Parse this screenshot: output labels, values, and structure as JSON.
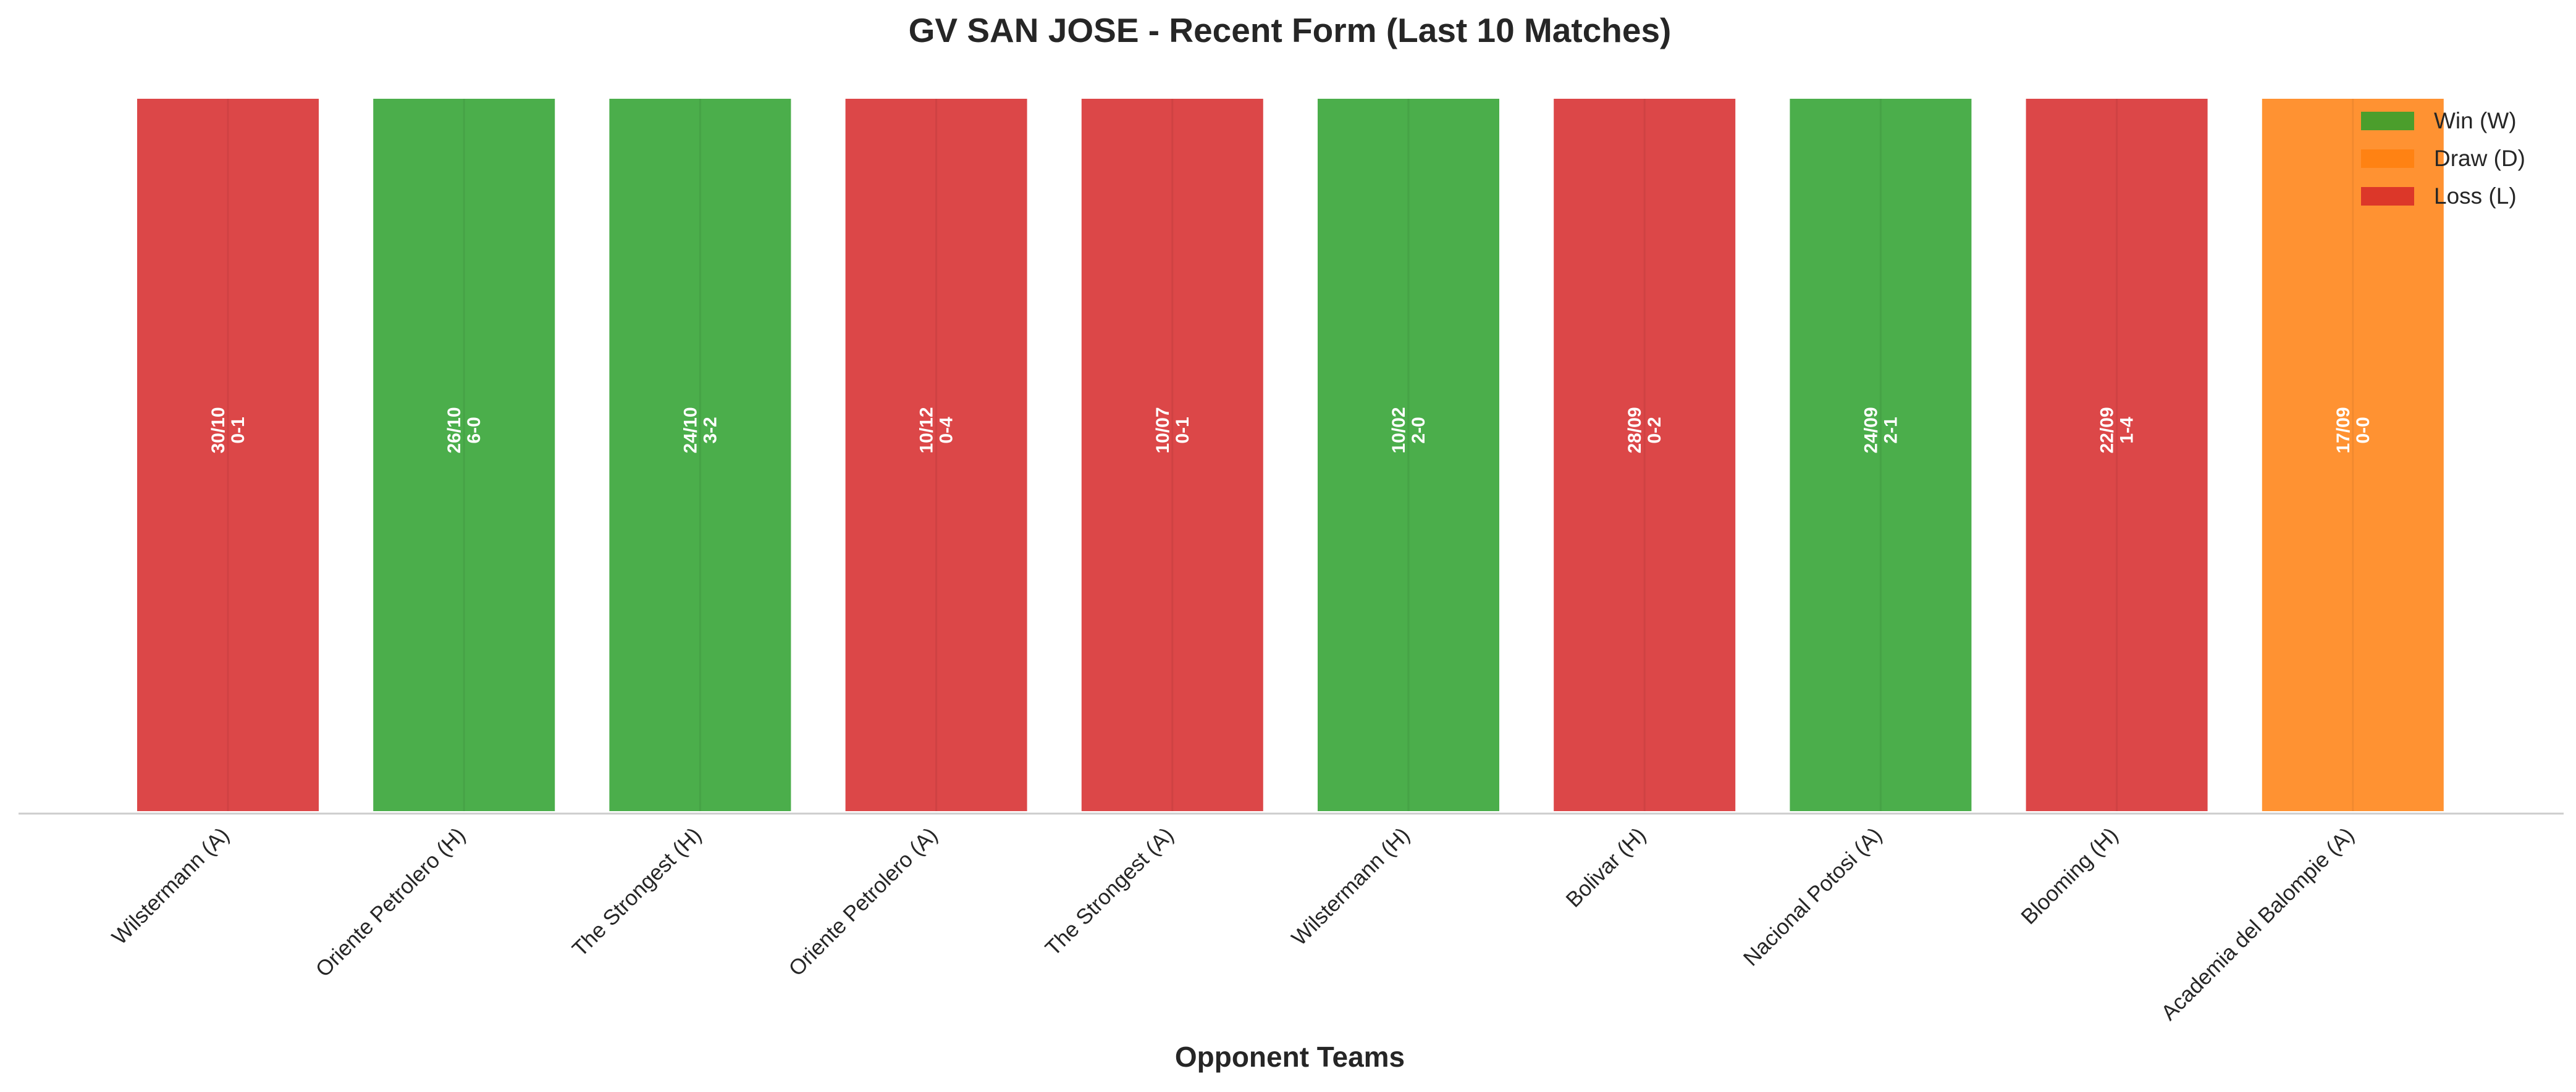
{
  "chart_data": {
    "type": "bar",
    "title": "GV SAN JOSE - Recent Form (Last 10 Matches)",
    "xlabel": "Opponent Teams",
    "ylabel": "",
    "ylim": [
      0,
      1
    ],
    "grid": false,
    "legend_position": "top-right",
    "categories": [
      "Wilstermann (A)",
      "Oriente Petrolero (H)",
      "The Strongest (H)",
      "Oriente Petrolero (A)",
      "The Strongest (A)",
      "Wilstermann (H)",
      "Bolivar (H)",
      "Nacional Potosi (A)",
      "Blooming (H)",
      "Academia del Balompie (A)"
    ],
    "values": [
      1,
      1,
      1,
      1,
      1,
      1,
      1,
      1,
      1,
      1
    ],
    "results": [
      "L",
      "W",
      "W",
      "L",
      "L",
      "W",
      "L",
      "W",
      "L",
      "D"
    ],
    "dates": [
      "30/10",
      "26/10",
      "24/10",
      "10/12",
      "10/07",
      "10/02",
      "28/09",
      "24/09",
      "22/09",
      "17/09"
    ],
    "scores": [
      "0-1",
      "6-0",
      "3-2",
      "0-4",
      "0-1",
      "2-0",
      "0-2",
      "2-1",
      "1-4",
      "0-0"
    ],
    "legend": [
      {
        "key": "W",
        "label": "Win (W)",
        "color": "#2ca02c"
      },
      {
        "key": "D",
        "label": "Draw (D)",
        "color": "#ff7f0e"
      },
      {
        "key": "L",
        "label": "Loss (L)",
        "color": "#d62728"
      }
    ]
  }
}
